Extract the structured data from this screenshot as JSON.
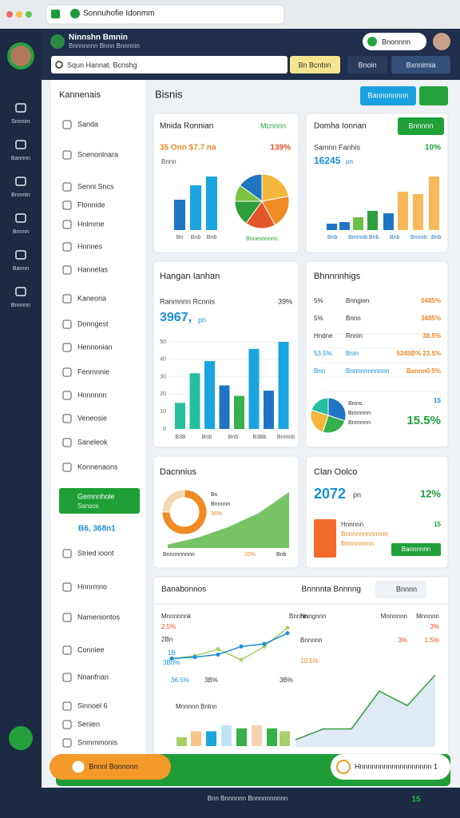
{
  "browser": {
    "tab": "Sonnuhofie Idonmm"
  },
  "sidebar": {
    "items": [
      "Snnnim",
      "Bannnn",
      "Bnnntin",
      "Bnnnn",
      "Bannn",
      "Bnnnnn"
    ]
  },
  "header": {
    "brand": "Ninnshn Bmnin",
    "subtitle": "Bnnnnnnn Bnnn Bnnnnin",
    "search": "Squn Hannat. Bcnshg",
    "pill": "Bnonnnn",
    "actions": [
      "Bn Bcnbin",
      "Bnoin",
      "Bxnnimia"
    ]
  },
  "nav": {
    "title": "Kannenais",
    "items": [
      "Sanda",
      "Snenonlnara",
      "Senni Sncs",
      "Flonnide",
      "Hnlmme",
      "Hnnnes",
      "Hannelas",
      "Kaneoria",
      "Donngest",
      "Hennonian",
      "Fenmnnie",
      "Hnnnnnn",
      "Veneosie",
      "Saneleok",
      "Konnenaons"
    ],
    "active": "Gemnnhole",
    "active_sub": "Sansos",
    "active_value": "B6, 368n1",
    "items2": [
      "Stried ioont",
      "Hnnrmno",
      "Nameniontos",
      "Conniee",
      "Nnanfnan",
      "Sinnoel 6",
      "Senien",
      "Snmmmonis"
    ]
  },
  "page": {
    "title": "Bisnis",
    "action": "Bannonnnnn"
  },
  "card_a": {
    "title": "Mnida Ronnian",
    "link": "Mcnnnn",
    "metric": "35 Onn $7.7 na",
    "change": "139%",
    "label": "Bnnn",
    "values": [
      38,
      56,
      67
    ],
    "axis_labels": [
      "Bn",
      "Bnb",
      "Bnb"
    ],
    "pie": [
      22,
      20,
      18,
      15,
      10,
      15
    ],
    "pie_caption": "Bnnennnnnn"
  },
  "card_b": {
    "title": "Domha Ionnan",
    "button": "Bnnnnn",
    "label": "Samnn Fanhis",
    "change": "10%",
    "metric": "16245",
    "unit": "pn",
    "values": [
      8,
      10,
      16,
      24,
      21,
      48,
      45,
      67
    ],
    "axis_labels": [
      "Bnb",
      "Bnnnnb",
      "Bnb",
      "Bnb",
      "Bnnnb",
      "Bnb"
    ]
  },
  "card_c": {
    "title": "Hangan Ianhan",
    "label": "Ranmnnn Rcnnis",
    "change": "39%",
    "metric": "3967,",
    "unit": "pn",
    "ylim": [
      0,
      50
    ],
    "yticks": [
      0,
      10,
      20,
      30,
      40,
      50
    ],
    "values": [
      15,
      32,
      39,
      25,
      19,
      46,
      22,
      50
    ],
    "axis_labels": [
      "B3B",
      "Bnb",
      "Bnb",
      "B3Bb",
      "Bnmnb"
    ]
  },
  "card_d": {
    "title": "Bhnnnnhigs",
    "rows": [
      [
        "5%",
        "Bnngien",
        "0485%"
      ],
      [
        "5%",
        "Bnnn",
        "3485%"
      ],
      [
        "Hndne",
        "Rnnin",
        "38.5%"
      ],
      [
        "53.5%",
        "Bnin",
        "5245B%  23.5%"
      ],
      [
        "Bnn",
        "Bnnnnnnnnnnn",
        "Bannn0.5%"
      ]
    ],
    "pie": [
      30,
      25,
      25,
      20
    ],
    "legend": [
      "Bnins",
      "Bnnnnnn",
      "Bnnnnnn"
    ],
    "big": "15.5%",
    "small": "15"
  },
  "card_e": {
    "title": "Dacnnius",
    "donut": [
      75,
      25
    ],
    "labels": [
      "Bs",
      "Bnnnnn",
      "36%"
    ],
    "area": [
      2,
      6,
      12,
      20,
      32
    ],
    "foot": [
      "Bnnnnnnnnn",
      "20%",
      "Bnb"
    ]
  },
  "card_f": {
    "title": "Clan Oolco",
    "value": "2072",
    "unit": "pn",
    "change": "12%",
    "lines": [
      "Hnnnnn",
      "Bnnnnnnnnnnnn",
      "Bnnnnnnnn"
    ],
    "small": "15",
    "button": "Bannnnnn"
  },
  "card_g": {
    "title": "Banabonnos",
    "subtitle": "Bnnnnta Bnnnng",
    "search": "Bnnnn",
    "left_labels": [
      "Mnnnnnnk",
      "2.5%",
      "Bnnnn",
      "2Bn",
      "1B",
      "3B0%",
      "36.5%",
      "3B%",
      "3B%"
    ],
    "right_labels": [
      "Nnngnnn",
      "Mnnnnnn",
      "Mnnnnn",
      "Bnnnnn",
      "10.5%",
      "3%",
      "1.5%",
      "3%"
    ],
    "bars_label": "Mnnnnn Bnlnn",
    "line_a": [
      7,
      8,
      10,
      16,
      18,
      26
    ],
    "line_b": [
      7,
      9,
      14,
      6,
      16,
      30
    ],
    "area": [
      4,
      10,
      10,
      31,
      23,
      40
    ],
    "bars": [
      6,
      10,
      10,
      14,
      12,
      14,
      12,
      10
    ]
  },
  "footer": {
    "left_pill": "Bnnnl Bonnonn",
    "right_pill": "Hnnnnnnnnnnnnnnnnnn 1",
    "status": "Bnn Bnnnnnn Bnnnnnnnnnn",
    "badge": "15"
  }
}
